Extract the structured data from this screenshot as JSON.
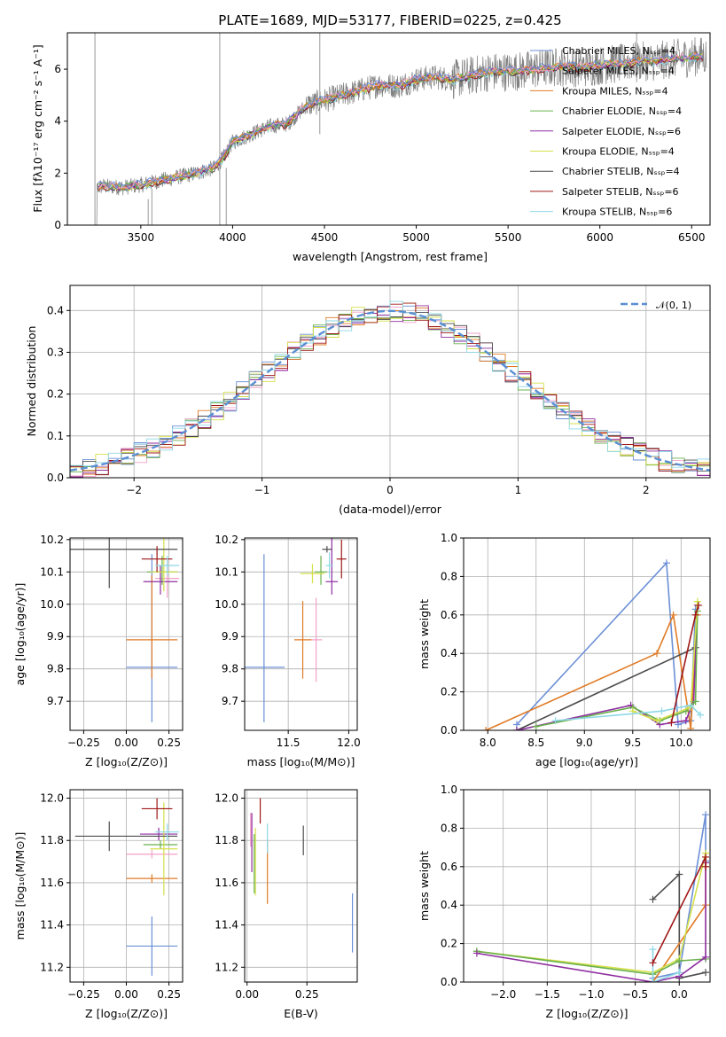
{
  "title": "PLATE=1689, MJD=53177, FIBERID=0225, z=0.425",
  "colors": {
    "chabrier_miles": "#6b8fd6",
    "salpeter_miles": "#f2a0c8",
    "kroupa_miles": "#e07b26",
    "chabrier_elodie": "#6ab04c",
    "salpeter_elodie": "#8e2ea0",
    "kroupa_elodie": "#d4e04a",
    "chabrier_stelib": "#4d4d4d",
    "salpeter_stelib": "#a01818",
    "kroupa_stelib": "#8ed8e6",
    "data": "#7f7f7f",
    "grid": "#b0b0b0"
  },
  "panels": {
    "spectrum": {
      "xlabel": "wavelength [Angstrom, rest frame]",
      "ylabel": "Flux [fλ10⁻¹⁷ erg cm⁻² s⁻¹ A⁻¹]",
      "xticks": [
        "3500",
        "4000",
        "4500",
        "5000",
        "5500",
        "6000",
        "6500"
      ],
      "yticks": [
        "0",
        "2",
        "4",
        "6"
      ],
      "legend": [
        {
          "label": "Chabrier MILES, Nₛₛₚ=4",
          "key": "chabrier_miles"
        },
        {
          "label": "Salpeter MILES, Nₛₛₚ=4",
          "key": "salpeter_miles"
        },
        {
          "label": "Kroupa MILES, Nₛₛₚ=4",
          "key": "kroupa_miles"
        },
        {
          "label": "Chabrier ELODIE, Nₛₛₚ=4",
          "key": "chabrier_elodie"
        },
        {
          "label": "Salpeter ELODIE, Nₛₛₚ=6",
          "key": "salpeter_elodie"
        },
        {
          "label": "Kroupa ELODIE, Nₛₛₚ=4",
          "key": "kroupa_elodie"
        },
        {
          "label": "Chabrier STELIB, Nₛₛₚ=4",
          "key": "chabrier_stelib"
        },
        {
          "label": "Salpeter STELIB, Nₛₛₚ=6",
          "key": "salpeter_stelib"
        },
        {
          "label": "Kroupa STELIB, Nₛₛₚ=6",
          "key": "kroupa_stelib"
        }
      ]
    },
    "residuals": {
      "xlabel": "(data-model)/error",
      "ylabel": "Normed distribution",
      "xticks": [
        "−2",
        "−1",
        "0",
        "1",
        "2"
      ],
      "yticks": [
        "0.0",
        "0.1",
        "0.2",
        "0.3",
        "0.4"
      ],
      "legend": "𝒩(0, 1)"
    },
    "age_z": {
      "xlabel": "Z [log₁₀(Z/Z⊙)]",
      "ylabel": "age  [log₁₀(age/yr)]",
      "xticks": [
        "−0.25",
        "0.00",
        "0.25"
      ],
      "yticks": [
        "9.7",
        "9.8",
        "9.9",
        "10.0",
        "10.1",
        "10.2"
      ]
    },
    "age_mass": {
      "xlabel": "mass [log₁₀(M/M⊙)]",
      "xticks": [
        "11.5",
        "12.0"
      ],
      "yticks": [
        "9.7",
        "9.8",
        "9.9",
        "10.0",
        "10.1",
        "10.2"
      ]
    },
    "mw_age": {
      "xlabel": "age  [log₁₀(age/yr)]",
      "ylabel": "mass weight",
      "xticks": [
        "8.0",
        "8.5",
        "9.0",
        "9.5",
        "10.0"
      ],
      "yticks": [
        "0.0",
        "0.2",
        "0.4",
        "0.6",
        "0.8",
        "1.0"
      ]
    },
    "mass_z": {
      "xlabel": "Z [log₁₀(Z/Z⊙)]",
      "ylabel": "mass [log₁₀(M/M⊙)]",
      "xticks": [
        "−0.25",
        "0.00",
        "0.25"
      ],
      "yticks": [
        "11.2",
        "11.4",
        "11.6",
        "11.8",
        "12.0"
      ]
    },
    "mass_ebv": {
      "xlabel": "E(B-V)",
      "xticks": [
        "0.00",
        "0.25"
      ],
      "yticks": [
        "11.2",
        "11.4",
        "11.6",
        "11.8",
        "12.0"
      ]
    },
    "mw_z": {
      "xlabel": "Z [log₁₀(Z/Z⊙)]",
      "ylabel": "mass weight",
      "xticks": [
        "−2.0",
        "−1.5",
        "−1.0",
        "−0.5",
        "0.0"
      ],
      "yticks": [
        "0.0",
        "0.2",
        "0.4",
        "0.6",
        "0.8",
        "1.0"
      ]
    }
  },
  "chart_data": [
    {
      "type": "line",
      "title": "PLATE=1689, MJD=53177, FIBERID=0225, z=0.425",
      "xlabel": "wavelength [Angstrom, rest frame]",
      "ylabel": "Flux [fλ10⁻¹⁷ erg cm⁻² s⁻¹ A⁻¹]",
      "xlim": [
        3100,
        6600
      ],
      "ylim": [
        0,
        7.4
      ],
      "model_envelope": {
        "x": [
          3260,
          3300,
          3400,
          3500,
          3600,
          3700,
          3800,
          3900,
          3950,
          4000,
          4100,
          4200,
          4300,
          4400,
          4500,
          4600,
          4700,
          4800,
          4900,
          5000,
          5100,
          5200,
          5300,
          5400,
          5500,
          5600,
          5700,
          5800,
          5900,
          6000,
          6100,
          6200,
          6300,
          6400,
          6550
        ],
        "y": [
          1.45,
          1.5,
          1.45,
          1.55,
          1.7,
          1.85,
          2.0,
          2.2,
          2.6,
          3.2,
          3.5,
          3.8,
          3.9,
          4.6,
          4.8,
          5.0,
          5.2,
          5.4,
          5.35,
          5.6,
          5.7,
          5.6,
          5.75,
          5.9,
          5.9,
          5.95,
          6.05,
          6.1,
          6.05,
          6.15,
          6.2,
          6.3,
          6.3,
          6.4,
          6.5
        ]
      }
    },
    {
      "type": "line",
      "xlabel": "(data-model)/error",
      "ylabel": "Normed distribution",
      "xlim": [
        -2.5,
        2.5
      ],
      "ylim": [
        0,
        0.46
      ],
      "series": [
        {
          "name": "𝒩(0, 1)",
          "mu": 0,
          "sigma": 1
        }
      ]
    },
    {
      "type": "scatter",
      "xlabel": "Z [log₁₀(Z/Z⊙)]",
      "ylabel": "age  [log₁₀(age/yr)]",
      "xlim": [
        -0.33,
        0.33
      ],
      "ylim": [
        9.61,
        10.205
      ],
      "points": [
        {
          "key": "chabrier_miles",
          "x": 0.15,
          "xerr": [
            0.15,
            0.15
          ],
          "y": 9.805,
          "yerr": [
            0.17,
            0.35
          ]
        },
        {
          "key": "salpeter_miles",
          "x": 0.24,
          "xerr": [
            0.07,
            0.07
          ],
          "y": 10.08,
          "yerr": [
            0.06,
            0.06
          ]
        },
        {
          "key": "kroupa_miles",
          "x": 0.15,
          "xerr": [
            0.15,
            0.15
          ],
          "y": 9.89,
          "yerr": [
            0.12,
            0.2
          ]
        },
        {
          "key": "chabrier_elodie",
          "x": 0.21,
          "xerr": [
            0.09,
            0.09
          ],
          "y": 10.1,
          "yerr": [
            0.04,
            0.05
          ]
        },
        {
          "key": "salpeter_elodie",
          "x": 0.2,
          "xerr": [
            0.1,
            0.1
          ],
          "y": 10.07,
          "yerr": [
            0.04,
            0.05
          ]
        },
        {
          "key": "kroupa_elodie",
          "x": 0.22,
          "xerr": [
            0.08,
            0.08
          ],
          "y": 10.1,
          "yerr": [
            0.06,
            0.25
          ]
        },
        {
          "key": "chabrier_stelib",
          "x": -0.1,
          "xerr": [
            0.23,
            0.4
          ],
          "y": 10.17,
          "yerr": [
            0.12,
            0.12
          ]
        },
        {
          "key": "salpeter_stelib",
          "x": 0.18,
          "xerr": [
            0.09,
            0.09
          ],
          "y": 10.14,
          "yerr": [
            0.04,
            0.04
          ]
        },
        {
          "key": "kroupa_stelib",
          "x": 0.24,
          "xerr": [
            0.07,
            0.07
          ],
          "y": 10.12,
          "yerr": [
            0.03,
            0.03
          ]
        }
      ]
    },
    {
      "type": "scatter",
      "xlabel": "mass [log₁₀(M/M⊙)]",
      "xlim": [
        11.14,
        12.07
      ],
      "ylim": [
        9.61,
        10.205
      ],
      "points": [
        {
          "key": "chabrier_miles",
          "x": 11.3,
          "xerr": [
            0.17,
            0.17
          ],
          "y": 9.805,
          "yerr": [
            0.17,
            0.35
          ]
        },
        {
          "key": "salpeter_miles",
          "x": 11.73,
          "xerr": [
            0.05,
            0.05
          ],
          "y": 9.89,
          "yerr": [
            0.13,
            0.13
          ]
        },
        {
          "key": "kroupa_miles",
          "x": 11.62,
          "xerr": [
            0.07,
            0.07
          ],
          "y": 9.89,
          "yerr": [
            0.12,
            0.12
          ]
        },
        {
          "key": "chabrier_elodie",
          "x": 11.77,
          "xerr": [
            0.05,
            0.05
          ],
          "y": 10.1,
          "yerr": [
            0.04,
            0.05
          ]
        },
        {
          "key": "salpeter_elodie",
          "x": 11.86,
          "xerr": [
            0.05,
            0.05
          ],
          "y": 10.07,
          "yerr": [
            0.04,
            0.27
          ]
        },
        {
          "key": "kroupa_elodie",
          "x": 11.7,
          "xerr": [
            0.1,
            0.1
          ],
          "y": 10.095,
          "yerr": [
            0.03,
            0.03
          ]
        },
        {
          "key": "chabrier_stelib",
          "x": 11.82,
          "xerr": [
            0.04,
            0.04
          ],
          "y": 10.17,
          "yerr": [
            0.01,
            0.01
          ]
        },
        {
          "key": "salpeter_stelib",
          "x": 11.94,
          "xerr": [
            0.04,
            0.04
          ],
          "y": 10.14,
          "yerr": [
            0.06,
            0.06
          ]
        },
        {
          "key": "kroupa_stelib",
          "x": 11.84,
          "xerr": [
            0.03,
            0.03
          ],
          "y": 10.12,
          "yerr": [
            0.04,
            0.04
          ]
        }
      ]
    },
    {
      "type": "line",
      "xlabel": "age  [log₁₀(age/yr)]",
      "ylabel": "mass weight",
      "xlim": [
        7.75,
        10.3
      ],
      "ylim": [
        0,
        1
      ],
      "series": [
        {
          "key": "chabrier_miles",
          "x": [
            8.3,
            9.85,
            9.97,
            10.1,
            10.15
          ],
          "y": [
            0.03,
            0.87,
            0.03,
            0.05,
            0.63
          ]
        },
        {
          "key": "kroupa_miles",
          "x": [
            7.98,
            9.75,
            9.92,
            10.1,
            10.17
          ],
          "y": [
            0.0,
            0.4,
            0.6,
            0.01,
            0.6
          ]
        },
        {
          "key": "chabrier_stelib",
          "x": [
            8.3,
            10.15
          ],
          "y": [
            0.0,
            0.43
          ]
        },
        {
          "key": "salpeter_elodie",
          "x": [
            8.3,
            9.48,
            9.78,
            10.05,
            10.13,
            10.17
          ],
          "y": [
            0.0,
            0.13,
            0.03,
            0.05,
            0.15,
            0.65
          ]
        },
        {
          "key": "chabrier_elodie",
          "x": [
            8.5,
            9.5,
            9.78,
            10.05,
            10.15,
            10.17
          ],
          "y": [
            0.02,
            0.12,
            0.05,
            0.1,
            0.15,
            0.62
          ]
        },
        {
          "key": "kroupa_elodie",
          "x": [
            9.5,
            9.75,
            10.1,
            10.17
          ],
          "y": [
            0.1,
            0.05,
            0.12,
            0.67
          ]
        },
        {
          "key": "kroupa_stelib",
          "x": [
            8.7,
            9.8,
            10.1,
            10.2
          ],
          "y": [
            0.05,
            0.1,
            0.13,
            0.08
          ]
        },
        {
          "key": "salpeter_stelib",
          "x": [
            9.9,
            10.15,
            10.18
          ],
          "y": [
            0.04,
            0.6,
            0.65
          ]
        }
      ]
    },
    {
      "type": "scatter",
      "xlabel": "Z [log₁₀(Z/Z⊙)]",
      "ylabel": "mass [log₁₀(M/M⊙)]",
      "xlim": [
        -0.33,
        0.33
      ],
      "ylim": [
        11.13,
        12.04
      ],
      "points": [
        {
          "key": "chabrier_miles",
          "x": 0.15,
          "xerr": [
            0.15,
            0.15
          ],
          "y": 11.3,
          "yerr": [
            0.14,
            0.14
          ]
        },
        {
          "key": "salpeter_miles",
          "x": 0.15,
          "xerr": [
            0.15,
            0.15
          ],
          "y": 11.735,
          "yerr": [
            0.02,
            0.02
          ]
        },
        {
          "key": "kroupa_miles",
          "x": 0.15,
          "xerr": [
            0.15,
            0.15
          ],
          "y": 11.62,
          "yerr": [
            0.02,
            0.02
          ]
        },
        {
          "key": "chabrier_elodie",
          "x": 0.2,
          "xerr": [
            0.1,
            0.1
          ],
          "y": 11.78,
          "yerr": [
            0.02,
            0.02
          ]
        },
        {
          "key": "salpeter_elodie",
          "x": 0.19,
          "xerr": [
            0.11,
            0.11
          ],
          "y": 11.83,
          "yerr": [
            0.03,
            0.03
          ]
        },
        {
          "key": "kroupa_elodie",
          "x": 0.22,
          "xerr": [
            0.08,
            0.08
          ],
          "y": 11.76,
          "yerr": [
            0.22,
            0.22
          ]
        },
        {
          "key": "chabrier_stelib",
          "x": -0.1,
          "xerr": [
            0.2,
            0.4
          ],
          "y": 11.82,
          "yerr": [
            0.07,
            0.07
          ]
        },
        {
          "key": "salpeter_stelib",
          "x": 0.18,
          "xerr": [
            0.09,
            0.09
          ],
          "y": 11.95,
          "yerr": [
            0.05,
            0.05
          ]
        },
        {
          "key": "kroupa_stelib",
          "x": 0.24,
          "xerr": [
            0.07,
            0.07
          ],
          "y": 11.84,
          "yerr": [
            0.04,
            0.04
          ]
        }
      ]
    },
    {
      "type": "scatter",
      "xlabel": "E(B-V)",
      "xlim": [
        -0.01,
        0.46
      ],
      "ylim": [
        11.13,
        12.04
      ],
      "points": [
        {
          "key": "chabrier_miles",
          "x": 0.44,
          "yerr": [
            0.14,
            0.14
          ],
          "y": 11.41
        },
        {
          "key": "salpeter_miles",
          "x": 0.015,
          "yerr": [
            0.08,
            0.08
          ],
          "y": 11.85
        },
        {
          "key": "kroupa_miles",
          "x": 0.085,
          "yerr": [
            0.15,
            0.15
          ],
          "y": 11.65
        },
        {
          "key": "chabrier_elodie",
          "x": 0.03,
          "yerr": [
            0.14,
            0.14
          ],
          "y": 11.69
        },
        {
          "key": "salpeter_elodie",
          "x": 0.02,
          "yerr": [
            0.14,
            0.14
          ],
          "y": 11.79
        },
        {
          "key": "kroupa_elodie",
          "x": 0.035,
          "yerr": [
            0.16,
            0.16
          ],
          "y": 11.7
        },
        {
          "key": "chabrier_stelib",
          "x": 0.235,
          "yerr": [
            0.07,
            0.07
          ],
          "y": 11.8
        },
        {
          "key": "salpeter_stelib",
          "x": 0.055,
          "yerr": [
            0.06,
            0.06
          ],
          "y": 11.94
        },
        {
          "key": "kroupa_stelib",
          "x": 0.085,
          "yerr": [
            0.07,
            0.07
          ],
          "y": 11.81
        }
      ]
    },
    {
      "type": "line",
      "xlabel": "Z [log₁₀(Z/Z⊙)]",
      "ylabel": "mass weight",
      "xlim": [
        -2.45,
        0.35
      ],
      "ylim": [
        0,
        1
      ],
      "series": [
        {
          "key": "chabrier_stelib",
          "x": [
            -0.3,
            0.0,
            0.0,
            0.3
          ],
          "y": [
            0.43,
            0.56,
            0.02,
            0.05
          ]
        },
        {
          "key": "chabrier_miles",
          "x": [
            -0.3,
            0.0,
            0.3,
            0.3
          ],
          "y": [
            0.02,
            0.05,
            0.87,
            0.63
          ]
        },
        {
          "key": "kroupa_miles",
          "x": [
            -0.3,
            0.3,
            0.3
          ],
          "y": [
            0.0,
            0.4,
            0.6
          ]
        },
        {
          "key": "kroupa_elodie",
          "x": [
            -2.3,
            -0.3,
            0.0,
            0.3,
            0.3
          ],
          "y": [
            0.16,
            0.05,
            0.12,
            0.67,
            0.6
          ]
        },
        {
          "key": "chabrier_elodie",
          "x": [
            -2.3,
            -0.3,
            0.0,
            0.3
          ],
          "y": [
            0.16,
            0.04,
            0.11,
            0.12
          ]
        },
        {
          "key": "salpeter_elodie",
          "x": [
            -2.3,
            -0.3,
            0.0,
            0.3,
            0.3
          ],
          "y": [
            0.15,
            0.0,
            0.03,
            0.13,
            0.62
          ]
        },
        {
          "key": "kroupa_stelib",
          "x": [
            -0.3,
            -0.3,
            0.0
          ],
          "y": [
            0.17,
            0.0,
            0.05
          ]
        },
        {
          "key": "salpeter_stelib",
          "x": [
            -0.3,
            0.3,
            0.3
          ],
          "y": [
            0.1,
            0.65,
            0.6
          ]
        }
      ]
    }
  ]
}
